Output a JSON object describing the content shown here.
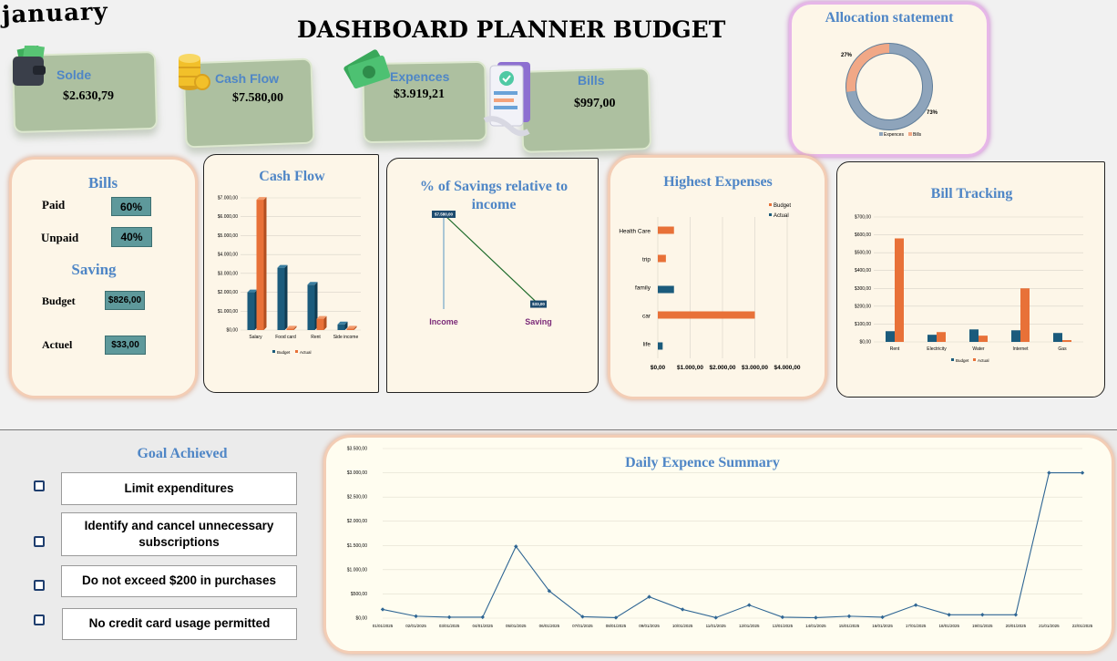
{
  "header": {
    "month": "january",
    "title": "DASHBOARD PLANNER BUDGET"
  },
  "kpis": {
    "solde": {
      "label": "Solde",
      "value": "$2.630,79"
    },
    "cashflow": {
      "label": "Cash Flow",
      "value": "$7.580,00"
    },
    "expences": {
      "label": "Expences",
      "value": "$3.919,21"
    },
    "bills": {
      "label": "Bills",
      "value": "$997,00"
    }
  },
  "bills_panel": {
    "title": "Bills",
    "paid_label": "Paid",
    "paid_value": "60%",
    "unpaid_label": "Unpaid",
    "unpaid_value": "40%",
    "saving_title": "Saving",
    "budget_label": "Budget",
    "budget_value": "$826,00",
    "actual_label": "Actuel",
    "actual_value": "$33,00"
  },
  "goals": {
    "title": "Goal Achieved",
    "items": [
      {
        "text": "Limit expenditures"
      },
      {
        "text": "Identify and cancel unnecessary subscriptions"
      },
      {
        "text": "Do not exceed $200 in purchases"
      },
      {
        "text": "No credit card usage permitted"
      }
    ]
  },
  "colors": {
    "budget": "#1b5b7c",
    "actual": "#e87138",
    "title_blue": "#4f86c6",
    "donut_blue": "#8ea4bb",
    "donut_peach": "#f1a886",
    "line": "#2f6694"
  },
  "chart_data": [
    {
      "id": "allocation",
      "type": "pie",
      "title": "Allocation statement",
      "labels": [
        "Expences",
        "Bills"
      ],
      "values": [
        73,
        27
      ],
      "value_labels": [
        "73%",
        "27%"
      ],
      "legend": "bottom"
    },
    {
      "id": "cashflow",
      "type": "bar",
      "title": "Cash Flow",
      "categories": [
        "Salary",
        "Food card",
        "Rent",
        "Side income"
      ],
      "series": [
        {
          "name": "Budget",
          "values": [
            2000,
            3300,
            2400,
            300
          ]
        },
        {
          "name": "Actual",
          "values": [
            6900,
            80,
            600,
            80
          ]
        }
      ],
      "yticks": [
        "$0,00",
        "$1.000,00",
        "$2.000,00",
        "$3.000,00",
        "$4.000,00",
        "$5.000,00",
        "$6.000,00",
        "$7.000,00"
      ],
      "ylim": [
        0,
        7000
      ],
      "legend": "bottom"
    },
    {
      "id": "savings",
      "type": "line",
      "title": "% of Savings relative to income",
      "categories": [
        "Income",
        "Saving"
      ],
      "values": [
        7580,
        33
      ],
      "value_labels": [
        "$7.580,00",
        "$33,00"
      ],
      "ylim": [
        0,
        7580
      ]
    },
    {
      "id": "highest",
      "type": "bar",
      "title": "Highest Expenses",
      "orientation": "horizontal",
      "categories": [
        "Health Care",
        "trip",
        "family",
        "car",
        "life"
      ],
      "series": [
        {
          "name": "Budget",
          "values": [
            500,
            250,
            0,
            3000,
            0
          ]
        },
        {
          "name": "Actual",
          "values": [
            0,
            0,
            500,
            0,
            150
          ]
        }
      ],
      "xticks": [
        "$0,00",
        "$1.000,00",
        "$2.000,00",
        "$3.000,00",
        "$4.000,00"
      ],
      "xlim": [
        0,
        4000
      ],
      "legend": "top-right"
    },
    {
      "id": "billtracking",
      "type": "bar",
      "title": "Bill Tracking",
      "categories": [
        "Rent",
        "Electricity",
        "Water",
        "Internet",
        "Gas"
      ],
      "series": [
        {
          "name": "Budget",
          "values": [
            60,
            40,
            70,
            65,
            50
          ]
        },
        {
          "name": "Actual",
          "values": [
            580,
            55,
            35,
            300,
            10
          ]
        }
      ],
      "yticks": [
        "$0,00",
        "$100,00",
        "$200,00",
        "$300,00",
        "$400,00",
        "$500,00",
        "$600,00",
        "$700,00"
      ],
      "ylim": [
        0,
        700
      ],
      "legend": "bottom"
    },
    {
      "id": "daily",
      "type": "line",
      "title": "Daily Expence Summary",
      "x": [
        "01/01/2025",
        "02/01/2025",
        "03/01/2025",
        "04/01/2025",
        "05/01/2025",
        "06/01/2025",
        "07/01/2025",
        "08/01/2025",
        "09/01/2025",
        "10/01/2025",
        "11/01/2025",
        "12/01/2025",
        "13/01/2025",
        "14/01/2025",
        "15/01/2025",
        "16/01/2025",
        "17/01/2025",
        "18/01/2025",
        "19/01/2025",
        "20/01/2025",
        "21/01/2025",
        "22/01/2025"
      ],
      "values": [
        180,
        40,
        20,
        20,
        1480,
        560,
        30,
        10,
        440,
        180,
        10,
        270,
        20,
        10,
        40,
        20,
        270,
        70,
        70,
        70,
        3000,
        3000
      ],
      "yticks": [
        "$0,00",
        "$500,00",
        "$1.000,00",
        "$1.500,00",
        "$2.000,00",
        "$2.500,00",
        "$3.000,00",
        "$3.500,00"
      ],
      "ylim": [
        0,
        3500
      ]
    }
  ]
}
